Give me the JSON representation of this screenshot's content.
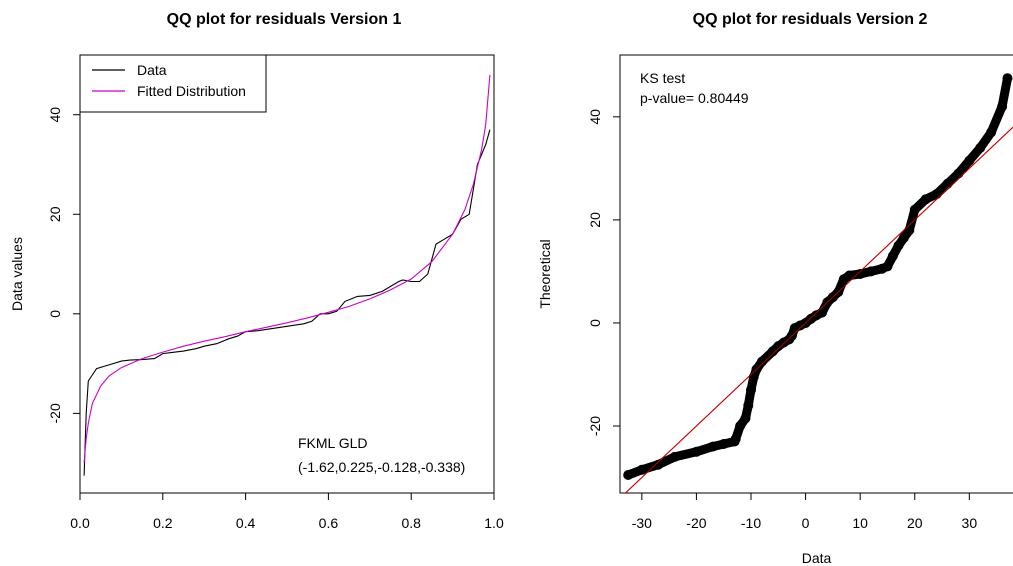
{
  "chart_data": [
    {
      "type": "line",
      "title": "QQ plot for residuals Version 1",
      "xlabel": "",
      "ylabel": "Data values",
      "xlim": [
        0,
        1
      ],
      "ylim": [
        -36,
        52
      ],
      "xticks": [
        0.0,
        0.2,
        0.4,
        0.6,
        0.8,
        1.0
      ],
      "xtick_labels": [
        "0.0",
        "0.2",
        "0.4",
        "0.6",
        "0.8",
        "1.0"
      ],
      "yticks": [
        -20,
        0,
        20,
        40
      ],
      "ytick_labels": [
        "-20",
        "0",
        "20",
        "40"
      ],
      "grid": false,
      "legend": {
        "placement": "top-left",
        "entries": [
          "Data",
          "Fitted Distribution"
        ]
      },
      "annotation": [
        "FKML GLD",
        "(-1.62,0.225,-0.128,-0.338)"
      ],
      "series": [
        {
          "name": "Data",
          "color": "#000000",
          "x": [
            0.01,
            0.015,
            0.02,
            0.04,
            0.06,
            0.08,
            0.1,
            0.12,
            0.15,
            0.18,
            0.2,
            0.22,
            0.25,
            0.28,
            0.3,
            0.33,
            0.36,
            0.38,
            0.4,
            0.43,
            0.46,
            0.5,
            0.54,
            0.56,
            0.58,
            0.6,
            0.62,
            0.64,
            0.67,
            0.7,
            0.73,
            0.75,
            0.77,
            0.78,
            0.8,
            0.82,
            0.84,
            0.86,
            0.88,
            0.9,
            0.92,
            0.94,
            0.96,
            0.98,
            0.99
          ],
          "y": [
            -32.5,
            -20,
            -13.5,
            -11,
            -10.5,
            -10,
            -9.5,
            -9.3,
            -9.2,
            -9,
            -8,
            -7.8,
            -7.5,
            -7,
            -6.5,
            -6,
            -5,
            -4.5,
            -3.6,
            -3.4,
            -3,
            -2.5,
            -2,
            -1.5,
            0,
            0,
            0.5,
            2.5,
            3.5,
            3.7,
            4.5,
            5.5,
            6.5,
            6.8,
            6.5,
            6.5,
            8,
            14,
            15,
            16,
            19,
            20,
            30,
            34,
            37
          ]
        },
        {
          "name": "Fitted Distribution",
          "color": "#cc00cc",
          "x": [
            0.01,
            0.015,
            0.02,
            0.03,
            0.05,
            0.07,
            0.1,
            0.15,
            0.2,
            0.25,
            0.3,
            0.35,
            0.4,
            0.45,
            0.5,
            0.55,
            0.6,
            0.65,
            0.7,
            0.75,
            0.8,
            0.85,
            0.9,
            0.93,
            0.95,
            0.97,
            0.98,
            0.99
          ],
          "y": [
            -30,
            -25,
            -22,
            -18,
            -14.5,
            -12.5,
            -10.8,
            -9,
            -7.7,
            -6.5,
            -5.5,
            -4.6,
            -3.6,
            -2.7,
            -1.8,
            -0.8,
            0.3,
            1.5,
            3,
            4.8,
            7,
            10.5,
            16,
            21,
            26,
            33,
            38,
            48
          ]
        }
      ]
    },
    {
      "type": "scatter",
      "title": "QQ plot for residuals Version 2",
      "xlabel": "Data",
      "ylabel": "Theoretical",
      "xlim": [
        -34,
        38
      ],
      "ylim": [
        -33,
        52
      ],
      "xticks": [
        -30,
        -20,
        -10,
        0,
        10,
        20,
        30
      ],
      "xtick_labels": [
        "-30",
        "-20",
        "-10",
        "0",
        "10",
        "20",
        "30"
      ],
      "yticks": [
        -20,
        0,
        20,
        40
      ],
      "ytick_labels": [
        "-20",
        "0",
        "20",
        "40"
      ],
      "grid": false,
      "annotation": [
        "KS test",
        "p-value= 0.80449"
      ],
      "reference_line": {
        "color": "#cc0000",
        "x": [
          -34,
          38
        ],
        "y": [
          -34,
          38
        ]
      },
      "series": [
        {
          "color": "#000000",
          "x": [
            -32.5,
            -30,
            -27,
            -24,
            -20,
            -17,
            -15,
            -13,
            -12.8,
            -12,
            -11,
            -10.5,
            -10,
            -9.5,
            -9,
            -8,
            -6,
            -5,
            -4,
            -3,
            -2.5,
            -2,
            -1,
            0,
            1,
            2,
            3,
            4,
            5,
            6,
            7,
            8,
            10,
            12,
            14,
            15,
            16,
            17,
            18,
            19,
            20,
            22,
            24,
            26,
            28,
            30,
            32,
            34,
            36,
            37
          ],
          "y": [
            -29.5,
            -28.5,
            -27.5,
            -26,
            -25,
            -24,
            -23.5,
            -23,
            -22.5,
            -20,
            -18.5,
            -16,
            -13,
            -10.5,
            -9,
            -7.5,
            -5.5,
            -4.5,
            -3.8,
            -3.2,
            -2.5,
            -1,
            -0.5,
            0,
            0.8,
            1.5,
            2,
            4,
            5,
            6,
            8.5,
            9.2,
            9.5,
            10,
            10.5,
            11,
            13,
            15,
            16.5,
            18,
            22,
            24,
            25,
            27,
            29,
            31.5,
            34,
            37,
            42,
            47.5
          ]
        }
      ]
    }
  ]
}
